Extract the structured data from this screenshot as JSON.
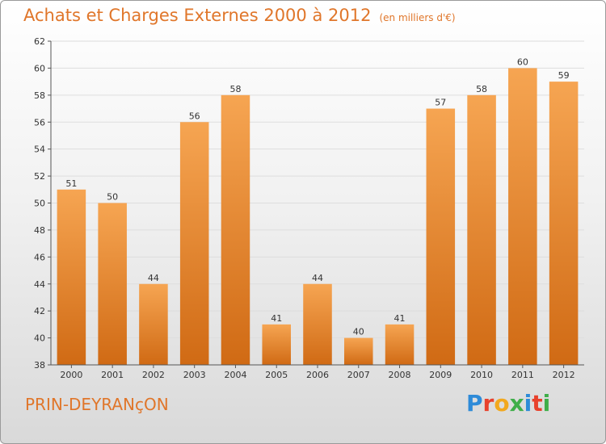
{
  "header": {
    "title": "Achats et Charges Externes 2000 à 2012",
    "subtitle": "(en milliers d'€)"
  },
  "footer": {
    "city": "PRIN-DEYRANçON",
    "brand": "Proxiti",
    "brand_colors": [
      "#2E8BD8",
      "#E8412C",
      "#F2A81D",
      "#3FAE49",
      "#2E8BD8",
      "#E8412C",
      "#3FAE49"
    ]
  },
  "colors": {
    "bar_top": "#F6A552",
    "bar_bottom": "#D06A14",
    "accent": "#E0762A",
    "grid": "#dddddd",
    "axis": "#555555"
  },
  "chart_data": {
    "type": "bar",
    "title": "Achats et Charges Externes 2000 à 2012",
    "subtitle": "(en milliers d'€)",
    "xlabel": "",
    "ylabel": "",
    "categories": [
      "2000",
      "2001",
      "2002",
      "2003",
      "2004",
      "2005",
      "2006",
      "2007",
      "2008",
      "2009",
      "2010",
      "2011",
      "2012"
    ],
    "values": [
      51,
      50,
      44,
      56,
      58,
      41,
      44,
      40,
      41,
      57,
      58,
      60,
      59
    ],
    "ylim": [
      38,
      62
    ],
    "yticks": [
      38,
      40,
      42,
      44,
      46,
      48,
      50,
      52,
      54,
      56,
      58,
      60,
      62
    ],
    "grid": true,
    "data_labels": true,
    "legend": "none"
  }
}
